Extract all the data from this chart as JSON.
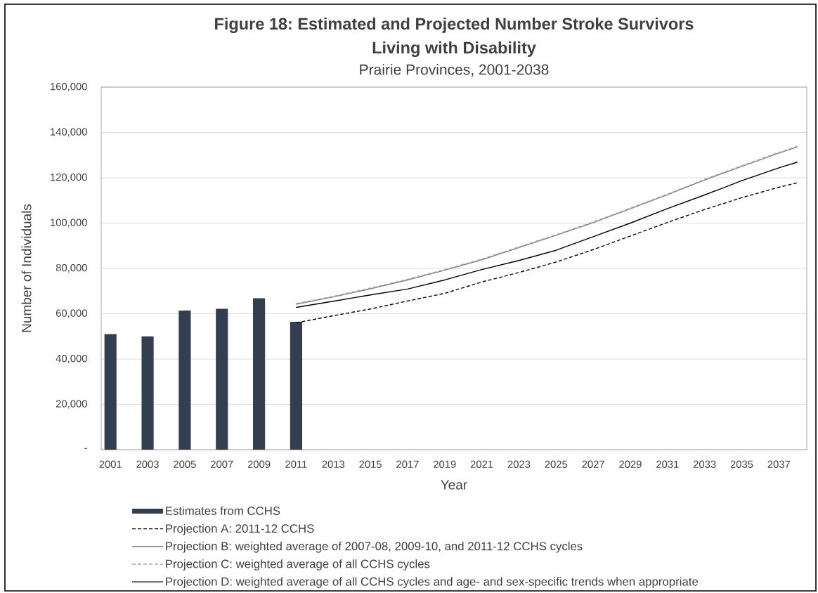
{
  "chart_data": {
    "type": "bar",
    "title": "Figure 18: Estimated and Projected Number Stroke Survivors Living with Disability",
    "subtitle": "Prairie Provinces, 2001-2038",
    "xlabel": "Year",
    "ylabel": "Number of Individuals",
    "xlim": [
      2000.5,
      2038.5
    ],
    "xticks": [
      2001,
      2003,
      2005,
      2007,
      2009,
      2011,
      2013,
      2015,
      2017,
      2019,
      2021,
      2023,
      2025,
      2027,
      2029,
      2031,
      2033,
      2035,
      2037
    ],
    "ylim": [
      0,
      160000
    ],
    "yticks": [
      {
        "value": 0,
        "label": "-"
      },
      {
        "value": 20000,
        "label": "20,000"
      },
      {
        "value": 40000,
        "label": "40,000"
      },
      {
        "value": 60000,
        "label": "60,000"
      },
      {
        "value": 80000,
        "label": "80,000"
      },
      {
        "value": 100000,
        "label": "100,000"
      },
      {
        "value": 120000,
        "label": "120,000"
      },
      {
        "value": 140000,
        "label": "140,000"
      },
      {
        "value": 160000,
        "label": "160,000"
      }
    ],
    "grid": "y",
    "legend": "bottom",
    "series": [
      {
        "name": "Estimates from CCHS",
        "color": "#333f50",
        "x": [
          2001,
          2003,
          2005,
          2007,
          2009,
          2011
        ],
        "values": [
          51000,
          50000,
          61400,
          62200,
          66800,
          56400
        ]
      },
      {
        "name": "Projection A: 2011-12 CCHS",
        "type": "line",
        "line_style": "dashed",
        "color": "#000000",
        "x": [
          2011,
          2013,
          2015,
          2017,
          2019,
          2021,
          2023,
          2025,
          2027,
          2029,
          2031,
          2033,
          2035,
          2037,
          2038
        ],
        "values": [
          56000,
          59100,
          62100,
          65600,
          69000,
          74000,
          78200,
          82800,
          88300,
          94300,
          100300,
          106000,
          111200,
          115800,
          117800
        ]
      },
      {
        "name": "Projection B: weighted average of 2007-08, 2009-10, and 2011-12 CCHS cycles",
        "type": "line",
        "line_style": "solid",
        "color": "#808080",
        "x": [
          2011,
          2013,
          2015,
          2017,
          2019,
          2021,
          2023,
          2025,
          2027,
          2029,
          2031,
          2033,
          2035,
          2037,
          2038
        ],
        "values": [
          64200,
          67400,
          71000,
          74900,
          79200,
          83800,
          89200,
          94600,
          100200,
          106300,
          112500,
          119000,
          125000,
          130900,
          133600
        ]
      },
      {
        "name": "Projection C: weighted average of all CCHS cycles",
        "type": "line",
        "line_style": "dashed",
        "color": "#a6a6a6",
        "x": [
          2011,
          2013,
          2015,
          2017,
          2019,
          2021,
          2023,
          2025,
          2027,
          2029,
          2031,
          2033,
          2035,
          2037,
          2038
        ],
        "values": [
          64500,
          67700,
          71300,
          75200,
          79500,
          84100,
          89500,
          94900,
          100500,
          106600,
          112800,
          119300,
          125300,
          131200,
          133900
        ]
      },
      {
        "name": "Projection D: weighted average of all CCHS cycles and age- and sex-specific trends when appropriate",
        "type": "line",
        "line_style": "solid",
        "color": "#000000",
        "x": [
          2011,
          2013,
          2015,
          2017,
          2019,
          2021,
          2023,
          2025,
          2027,
          2029,
          2031,
          2033,
          2035,
          2037,
          2038
        ],
        "values": [
          62800,
          65500,
          68300,
          70900,
          74900,
          79500,
          83500,
          88000,
          94000,
          100000,
          106400,
          112400,
          118700,
          124400,
          126900
        ]
      }
    ]
  }
}
